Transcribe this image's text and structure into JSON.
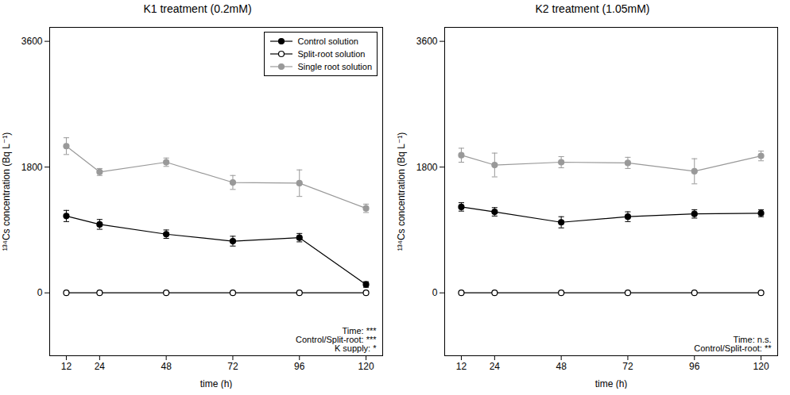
{
  "chart_data": [
    {
      "type": "line",
      "title": "K1 treatment (0.2mM)",
      "xlabel": "time (h)",
      "ylabel": "¹³⁴Cs concentration (Bq L⁻¹)",
      "x": [
        12,
        24,
        48,
        72,
        96,
        120
      ],
      "xlim": [
        6,
        126
      ],
      "xticks": [
        12,
        24,
        48,
        72,
        96,
        120
      ],
      "ylim": [
        -900,
        3800
      ],
      "yticks": [
        0,
        1800,
        3600
      ],
      "grid": false,
      "legend": "upper right",
      "annotation": "Time: ***\nControl/Split-root: ***\nK supply: *",
      "series": [
        {
          "name": "Control solution",
          "color": "#000000",
          "marker": "circle",
          "line_style": "solid",
          "values": [
            1100,
            980,
            840,
            740,
            790,
            120
          ],
          "errors": [
            80,
            70,
            60,
            70,
            60,
            40
          ]
        },
        {
          "name": "Split-root solution",
          "color": "#000000",
          "marker": "circle-open",
          "line_style": "solid",
          "values": [
            0,
            0,
            0,
            0,
            0,
            0
          ],
          "errors": [
            0,
            0,
            0,
            0,
            0,
            0
          ]
        },
        {
          "name": "Single root solution",
          "color": "#999999",
          "marker": "circle",
          "line_style": "solid",
          "values": [
            2100,
            1730,
            1870,
            1580,
            1570,
            1210
          ],
          "errors": [
            120,
            50,
            60,
            100,
            190,
            60
          ]
        }
      ]
    },
    {
      "type": "line",
      "title": "K2 treatment (1.05mM)",
      "xlabel": "time (h)",
      "ylabel": "¹³⁴Cs concentration (Bq L⁻¹)",
      "x": [
        12,
        24,
        48,
        72,
        96,
        120
      ],
      "xlim": [
        6,
        126
      ],
      "xticks": [
        12,
        24,
        48,
        72,
        96,
        120
      ],
      "ylim": [
        -900,
        3800
      ],
      "yticks": [
        0,
        1800,
        3600
      ],
      "grid": false,
      "annotation": "Time: n.s.\nControl/Split-root: **",
      "series": [
        {
          "name": "Control solution",
          "color": "#000000",
          "marker": "circle",
          "line_style": "solid",
          "values": [
            1230,
            1160,
            1010,
            1090,
            1130,
            1140
          ],
          "errors": [
            60,
            60,
            80,
            70,
            60,
            50
          ]
        },
        {
          "name": "Split-root solution",
          "color": "#000000",
          "marker": "circle-open",
          "line_style": "solid",
          "values": [
            0,
            0,
            0,
            0,
            0,
            0
          ],
          "errors": [
            0,
            0,
            0,
            0,
            0,
            0
          ]
        },
        {
          "name": "Single root solution",
          "color": "#999999",
          "marker": "circle",
          "line_style": "solid",
          "values": [
            1970,
            1830,
            1870,
            1860,
            1740,
            1960
          ],
          "errors": [
            100,
            170,
            80,
            80,
            180,
            70
          ]
        }
      ]
    }
  ]
}
